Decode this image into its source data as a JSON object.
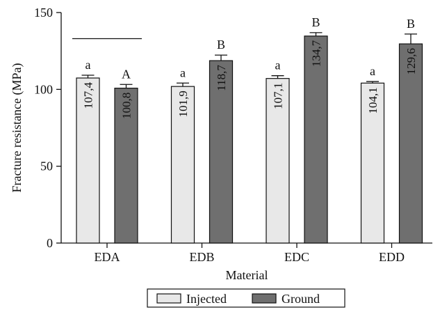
{
  "chart_data": {
    "type": "bar",
    "categories": [
      "EDA",
      "EDB",
      "EDC",
      "EDD"
    ],
    "series": [
      {
        "name": "Injected",
        "values": [
          107.4,
          101.9,
          107.1,
          104.1
        ],
        "errors": [
          1.8,
          2.2,
          1.8,
          1.0
        ],
        "value_labels": [
          "107,4",
          "101,9",
          "107,1",
          "104,1"
        ],
        "letters": [
          "a",
          "a",
          "a",
          "a"
        ],
        "color": "#e8e8e8"
      },
      {
        "name": "Ground",
        "values": [
          100.8,
          118.7,
          134.7,
          129.6
        ],
        "errors": [
          2.4,
          3.6,
          2.2,
          6.4
        ],
        "value_labels": [
          "100,8",
          "118,7",
          "134,7",
          "129,6"
        ],
        "letters": [
          "A",
          "B",
          "B",
          "B"
        ],
        "color": "#6f6f6f"
      }
    ],
    "xlabel": "Material",
    "ylabel": "Fracture resistance (MPa)",
    "ylim": [
      0,
      150
    ],
    "yticks": [
      0,
      50,
      100,
      150
    ],
    "grid": false,
    "legend": "bottom-center",
    "annotation_line_over": "EDA",
    "annotation_line_value": 133
  }
}
